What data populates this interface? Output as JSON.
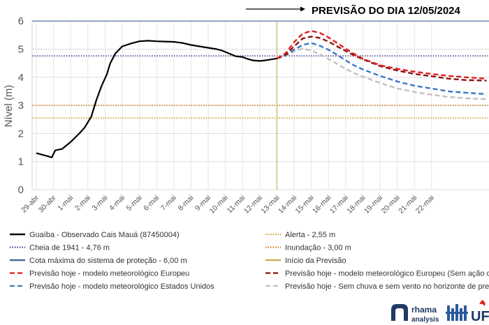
{
  "chart_data": {
    "type": "line",
    "title": "PREVISÃO DO DIA 12/05/2024",
    "ylabel": "Nível (m)",
    "ylim": [
      0,
      6
    ],
    "yticks": [
      0,
      1,
      2,
      3,
      4,
      5,
      6
    ],
    "xlim": [
      0,
      26.2
    ],
    "categories": [
      "29-abr",
      "30-abr",
      "1-mai",
      "2-mai",
      "3-mai",
      "4-mai",
      "5-mai",
      "6-mai",
      "7-mai",
      "8-mai",
      "9-mai",
      "10-mai",
      "11-mai",
      "12-mai",
      "13-mai",
      "14-mai",
      "15-mai",
      "16-mai",
      "17-mai",
      "18-mai",
      "19-mai",
      "20-mai",
      "21-mai",
      "22-mai"
    ],
    "grid": true,
    "legend_position": "bottom",
    "series": [
      {
        "name": "Guaíba - Observado Cais Mauá (87450004)",
        "style": "solid",
        "color": "#000000",
        "points": [
          [
            0,
            1.3
          ],
          [
            0.3,
            1.25
          ],
          [
            0.6,
            1.2
          ],
          [
            0.9,
            1.15
          ],
          [
            1.1,
            1.4
          ],
          [
            1.5,
            1.45
          ],
          [
            2,
            1.7
          ],
          [
            2.5,
            2.0
          ],
          [
            2.8,
            2.2
          ],
          [
            3.2,
            2.6
          ],
          [
            3.5,
            3.2
          ],
          [
            3.8,
            3.7
          ],
          [
            4.1,
            4.1
          ],
          [
            4.3,
            4.5
          ],
          [
            4.6,
            4.85
          ],
          [
            5,
            5.1
          ],
          [
            5.5,
            5.2
          ],
          [
            6,
            5.28
          ],
          [
            6.5,
            5.3
          ],
          [
            7,
            5.28
          ],
          [
            7.5,
            5.27
          ],
          [
            8,
            5.26
          ],
          [
            8.5,
            5.22
          ],
          [
            9,
            5.15
          ],
          [
            9.5,
            5.1
          ],
          [
            10,
            5.05
          ],
          [
            10.5,
            5.0
          ],
          [
            10.8,
            4.95
          ],
          [
            11.2,
            4.85
          ],
          [
            11.6,
            4.75
          ],
          [
            12,
            4.72
          ],
          [
            12.3,
            4.65
          ],
          [
            12.6,
            4.6
          ],
          [
            13,
            4.58
          ],
          [
            13.3,
            4.6
          ],
          [
            13.6,
            4.63
          ],
          [
            14.0,
            4.67
          ]
        ]
      },
      {
        "name": "Previsão hoje - modelo meteorológico Europeu",
        "style": "dashed",
        "color": "#e02020",
        "points": [
          [
            14.0,
            4.67
          ],
          [
            14.5,
            4.85
          ],
          [
            15.0,
            5.25
          ],
          [
            15.5,
            5.55
          ],
          [
            16.0,
            5.65
          ],
          [
            16.5,
            5.58
          ],
          [
            17.0,
            5.42
          ],
          [
            17.5,
            5.22
          ],
          [
            18.0,
            5.02
          ],
          [
            18.5,
            4.83
          ],
          [
            19.0,
            4.66
          ],
          [
            20,
            4.43
          ],
          [
            21,
            4.3
          ],
          [
            22,
            4.2
          ],
          [
            23,
            4.12
          ],
          [
            24,
            4.05
          ],
          [
            25,
            4.0
          ],
          [
            26.2,
            3.95
          ]
        ]
      },
      {
        "name": "Previsão hoje - modelo meteorológico Europeu (Sem ação do",
        "style": "dashed",
        "color": "#8b1010",
        "points": [
          [
            14.0,
            4.67
          ],
          [
            14.5,
            4.8
          ],
          [
            15.0,
            5.1
          ],
          [
            15.5,
            5.38
          ],
          [
            16.0,
            5.45
          ],
          [
            16.5,
            5.4
          ],
          [
            17.0,
            5.27
          ],
          [
            17.5,
            5.1
          ],
          [
            18.0,
            4.94
          ],
          [
            18.5,
            4.78
          ],
          [
            19.0,
            4.64
          ],
          [
            20,
            4.4
          ],
          [
            21,
            4.24
          ],
          [
            22,
            4.12
          ],
          [
            23,
            4.04
          ],
          [
            24,
            3.95
          ],
          [
            25,
            3.9
          ],
          [
            26.2,
            3.88
          ]
        ]
      },
      {
        "name": "Previsão hoje - modelo meteorológico Estados Unidos",
        "style": "dashed",
        "color": "#3a78c8",
        "points": [
          [
            14.0,
            4.67
          ],
          [
            14.5,
            4.78
          ],
          [
            15.0,
            4.98
          ],
          [
            15.5,
            5.15
          ],
          [
            16.0,
            5.22
          ],
          [
            16.5,
            5.12
          ],
          [
            17.0,
            4.98
          ],
          [
            17.5,
            4.8
          ],
          [
            18.0,
            4.6
          ],
          [
            18.5,
            4.42
          ],
          [
            19.0,
            4.28
          ],
          [
            20,
            4.05
          ],
          [
            21,
            3.85
          ],
          [
            22,
            3.7
          ],
          [
            23,
            3.6
          ],
          [
            24,
            3.5
          ],
          [
            25,
            3.45
          ],
          [
            26.2,
            3.4
          ]
        ]
      },
      {
        "name": "Previsão hoje - Sem chuva e sem vento no horizonte de previ",
        "style": "dashed",
        "color": "#c0c0c0",
        "points": [
          [
            14.0,
            4.67
          ],
          [
            14.5,
            4.75
          ],
          [
            15.0,
            4.92
          ],
          [
            15.5,
            5.02
          ],
          [
            16.0,
            4.95
          ],
          [
            16.5,
            4.82
          ],
          [
            17.0,
            4.65
          ],
          [
            17.5,
            4.48
          ],
          [
            18.0,
            4.3
          ],
          [
            18.5,
            4.15
          ],
          [
            19.0,
            4.02
          ],
          [
            20,
            3.8
          ],
          [
            21,
            3.6
          ],
          [
            22,
            3.48
          ],
          [
            23,
            3.38
          ],
          [
            24,
            3.3
          ],
          [
            25,
            3.25
          ],
          [
            26.2,
            3.22
          ]
        ]
      }
    ],
    "reference_lines": [
      {
        "name": "Alerta - 2,55 m",
        "value": 2.55,
        "style": "dotted",
        "color": "#c8a020"
      },
      {
        "name": "Cheia de 1941 - 4,76 m",
        "value": 4.76,
        "style": "dotted",
        "color": "#4a3a8a"
      },
      {
        "name": "Inundação - 3,00 m",
        "value": 3.0,
        "style": "dotted",
        "color": "#d08020"
      },
      {
        "name": "Cota máxima do sistema de proteção - 6,00 m",
        "value": 6.0,
        "style": "solid",
        "color": "#4a6a9a"
      }
    ],
    "forecast_start": {
      "name": "Início da Previsão",
      "x": 14.0,
      "color": "#c8b060"
    }
  },
  "legend": {
    "left": [
      {
        "label": "Guaíba - Observado Cais Mauá (87450004)",
        "color": "#000000",
        "style": "solid"
      },
      {
        "label": "Cheia de 1941 - 4,76 m",
        "color": "#4a3a8a",
        "style": "dotted"
      },
      {
        "label": "Cota máxima do sistema de proteção - 6,00 m",
        "color": "#4a6a9a",
        "style": "solid"
      },
      {
        "label": "Previsão hoje - modelo meteorológico Europeu",
        "color": "#e02020",
        "style": "dashed"
      },
      {
        "label": "Previsão hoje - modelo meteorológico Estados Unidos",
        "color": "#3a78c8",
        "style": "dashed"
      }
    ],
    "right": [
      {
        "label": "Alerta - 2,55 m",
        "color": "#c8a020",
        "style": "dotted"
      },
      {
        "label": "Inundação - 3,00 m",
        "color": "#d08020",
        "style": "dotted"
      },
      {
        "label": "Início da Previsão",
        "color": "#c8b060",
        "style": "solid"
      },
      {
        "label": "Previsão hoje - modelo meteorológico Europeu (Sem ação do",
        "color": "#8b1010",
        "style": "dashed"
      },
      {
        "label": "Previsão hoje - Sem chuva e sem vento no horizonte de previ",
        "color": "#c0c0c0",
        "style": "dashed"
      }
    ]
  },
  "logos": {
    "rhama_line1": "rhama",
    "rhama_line2": "analysis",
    "uf_text": "UF"
  }
}
